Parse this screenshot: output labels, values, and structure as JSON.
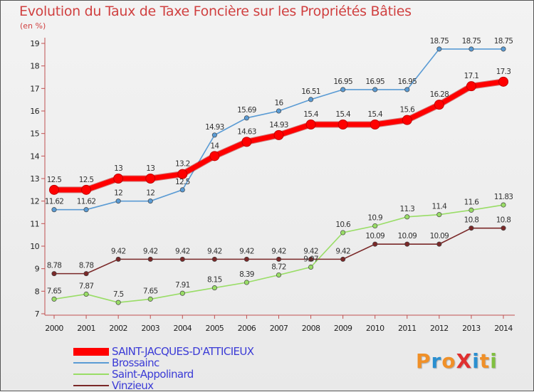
{
  "title": "Evolution du Taux de Taxe Foncière sur les Propriétés Bâties",
  "unit": "(en %)",
  "logo": {
    "text": "ProXiti",
    "letters": [
      {
        "ch": "P",
        "color": "#f09028"
      },
      {
        "ch": "r",
        "color": "#2a8fd0"
      },
      {
        "ch": "o",
        "color": "#f09028"
      },
      {
        "ch": "X",
        "color": "#e03030"
      },
      {
        "ch": "i",
        "color": "#2a8fd0"
      },
      {
        "ch": "t",
        "color": "#f09028"
      },
      {
        "ch": "i",
        "color": "#80c040"
      }
    ]
  },
  "chart_data": {
    "type": "line",
    "title": "Evolution du Taux de Taxe Foncière sur les Propriétés Bâties",
    "ylabel": "(en %)",
    "xlabel": "",
    "x": [
      2000,
      2001,
      2002,
      2003,
      2004,
      2005,
      2006,
      2007,
      2008,
      2009,
      2010,
      2011,
      2012,
      2013,
      2014
    ],
    "ylim": [
      7,
      19
    ],
    "yticks": [
      7,
      8,
      9,
      10,
      11,
      12,
      13,
      14,
      15,
      16,
      17,
      18,
      19
    ],
    "grid": false,
    "legend_position": "bottom-left",
    "series": [
      {
        "name": "SAINT-JACQUES-D'ATTICIEUX",
        "color": "#ff0000",
        "emphasis": true,
        "values": [
          12.5,
          12.5,
          13,
          13,
          13.2,
          14,
          14.63,
          14.93,
          15.4,
          15.4,
          15.4,
          15.6,
          16.28,
          17.1,
          17.3
        ],
        "labels": [
          "12.5",
          "12.5",
          "13",
          "13",
          "13.2",
          "14",
          "14.63",
          "14.93",
          "15.4",
          "15.4",
          "15.4",
          "15.6",
          "16.28",
          "17.1",
          "17.3"
        ]
      },
      {
        "name": "Brossainc",
        "color": "#5a9bd4",
        "emphasis": false,
        "values": [
          11.62,
          11.62,
          12,
          12,
          12.5,
          14.93,
          15.69,
          16,
          16.51,
          16.95,
          16.95,
          16.95,
          18.75,
          18.75,
          18.75
        ],
        "labels": [
          "11.62",
          "11.62",
          "12",
          "12",
          "12.5",
          "14.93",
          "15.69",
          "16",
          "16.51",
          "16.95",
          "16.95",
          "16.95",
          "18.75",
          "18.75",
          "18.75"
        ]
      },
      {
        "name": "Saint-Appolinard",
        "color": "#99dd66",
        "emphasis": false,
        "values": [
          7.65,
          7.87,
          7.5,
          7.65,
          7.91,
          8.15,
          8.39,
          8.72,
          9.07,
          10.6,
          10.9,
          11.3,
          11.4,
          11.6,
          11.83
        ],
        "labels": [
          "7.65",
          "7.87",
          "7.5",
          "7.65",
          "7.91",
          "8.15",
          "8.39",
          "8.72",
          "9.07",
          "10.6",
          "10.9",
          "11.3",
          "11.4",
          "11.6",
          "11.83"
        ]
      },
      {
        "name": "Vinzieux",
        "color": "#7a2828",
        "emphasis": false,
        "values": [
          8.78,
          8.78,
          9.42,
          9.42,
          9.42,
          9.42,
          9.42,
          9.42,
          9.42,
          9.42,
          10.09,
          10.09,
          10.09,
          10.8,
          10.8
        ],
        "labels": [
          "8.78",
          "8.78",
          "9.42",
          "9.42",
          "9.42",
          "9.42",
          "9.42",
          "9.42",
          "9.42",
          "9.42",
          "10.09",
          "10.09",
          "10.09",
          "10.8",
          "10.8"
        ]
      }
    ]
  }
}
